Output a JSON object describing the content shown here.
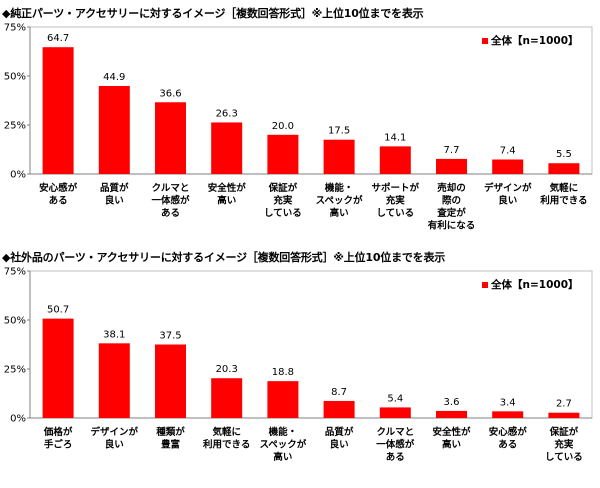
{
  "chart_data": [
    {
      "type": "bar",
      "title": "◆純正パーツ・アクセサリーに対するイメージ［複数回答形式］※上位10位までを表示",
      "legend": "全体【n=1000】",
      "legend_position": "top-right",
      "ylim": [
        0,
        75
      ],
      "yticks": [
        "0%",
        "25%",
        "50%",
        "75%"
      ],
      "color": "#ff0000",
      "categories": [
        [
          "安心感が",
          "ある"
        ],
        [
          "品質が",
          "良い"
        ],
        [
          "クルマと",
          "一体感が",
          "ある"
        ],
        [
          "安全性が",
          "高い"
        ],
        [
          "保証が",
          "充実",
          "している"
        ],
        [
          "機能・",
          "スペックが",
          "高い"
        ],
        [
          "サポートが",
          "充実",
          "している"
        ],
        [
          "売却の",
          "際の",
          "査定が",
          "有利になる"
        ],
        [
          "デザインが",
          "良い"
        ],
        [
          "気軽に",
          "利用できる"
        ]
      ],
      "values": [
        64.7,
        44.9,
        36.6,
        26.3,
        20.0,
        17.5,
        14.1,
        7.7,
        7.4,
        5.5
      ],
      "value_labels": [
        "64.7",
        "44.9",
        "36.6",
        "26.3",
        "20.0",
        "17.5",
        "14.1",
        "7.7",
        "7.4",
        "5.5"
      ]
    },
    {
      "type": "bar",
      "title": "◆社外品のパーツ・アクセサリーに対するイメージ［複数回答形式］※上位10位までを表示",
      "legend": "全体【n=1000】",
      "legend_position": "top-right",
      "ylim": [
        0,
        75
      ],
      "yticks": [
        "0%",
        "25%",
        "50%",
        "75%"
      ],
      "color": "#ff0000",
      "categories": [
        [
          "価格が",
          "手ごろ"
        ],
        [
          "デザインが",
          "良い"
        ],
        [
          "種類が",
          "豊富"
        ],
        [
          "気軽に",
          "利用できる"
        ],
        [
          "機能・",
          "スペックが",
          "高い"
        ],
        [
          "品質が",
          "良い"
        ],
        [
          "クルマと",
          "一体感が",
          "ある"
        ],
        [
          "安全性が",
          "高い"
        ],
        [
          "安心感が",
          "ある"
        ],
        [
          "保証が",
          "充実",
          "している"
        ]
      ],
      "values": [
        50.7,
        38.1,
        37.5,
        20.3,
        18.8,
        8.7,
        5.4,
        3.6,
        3.4,
        2.7
      ],
      "value_labels": [
        "50.7",
        "38.1",
        "37.5",
        "20.3",
        "18.8",
        "8.7",
        "5.4",
        "3.6",
        "3.4",
        "2.7"
      ]
    }
  ]
}
